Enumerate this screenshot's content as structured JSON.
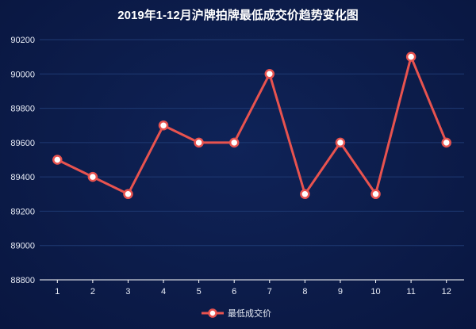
{
  "chart_data": {
    "type": "line",
    "title": "2019年1-12月沪牌拍牌最低成交价趋势变化图",
    "xlabel": "",
    "ylabel": "",
    "categories": [
      "1",
      "2",
      "3",
      "4",
      "5",
      "6",
      "7",
      "8",
      "9",
      "10",
      "11",
      "12"
    ],
    "series": [
      {
        "name": "最低成交价",
        "values": [
          89500,
          89400,
          89300,
          89700,
          89600,
          89600,
          90000,
          89300,
          89600,
          89300,
          90100,
          89600
        ]
      }
    ],
    "ylim": [
      88800,
      90200
    ],
    "yticks": [
      "88800",
      "89000",
      "89200",
      "89400",
      "89600",
      "89800",
      "90000",
      "90200"
    ],
    "grid": true,
    "legend_position": "bottom-center",
    "colors": {
      "background": "#0b1a45",
      "line": "#e8534f",
      "marker_fill": "#ffffff",
      "grid": "#1f3a73",
      "text": "#ffffff"
    }
  }
}
